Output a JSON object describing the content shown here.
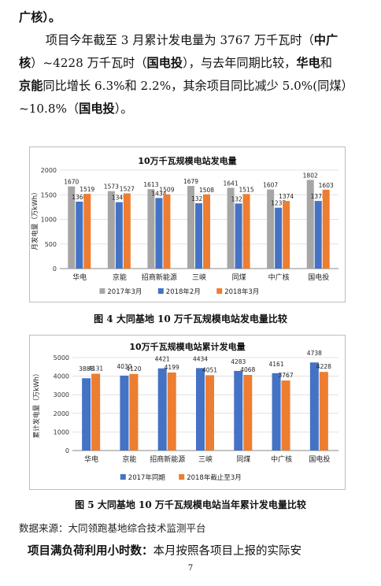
{
  "para": {
    "l1": "广核）。",
    "l2a": "项目今年截至 3 月累计发电量为 3767 万千瓦时（",
    "l2b": "中广",
    "l3a": "核",
    "l3b": "）~4228 万千瓦时（",
    "l3c": "国电投",
    "l3d": "），与去年同期比较，",
    "l3e": "华电",
    "l3f": "和",
    "l4a": "京能",
    "l4b": "同比增长 6.3%和 2.2%，其余项目同比减少 5.0%(同煤）",
    "l5a": "~10.8%（",
    "l5b": "国电投",
    "l5c": "）。"
  },
  "figure4": {
    "caption": "图 4   大同基地 10 万千瓦规模电站发电量比较"
  },
  "figure5": {
    "caption": "图 5   大同基地 10 万千瓦规模电站当年累计发电量比较"
  },
  "source": "数据来源：大同领跑基地综合技术监测平台",
  "last": {
    "bold": "项目满负荷利用小时数：",
    "rest": "本月按照各项目上报的实际安"
  },
  "page_number": "7",
  "chart_data": [
    {
      "type": "bar",
      "title": "10万千瓦规模电站发电量",
      "ylabel": "月发电量（万kWh）",
      "ylim": [
        0,
        2000
      ],
      "yticks": [
        0,
        500,
        1000,
        1500,
        2000
      ],
      "grid": true,
      "legend_position": "bottom",
      "categories": [
        "华电",
        "京能",
        "招商新能源",
        "三峡",
        "同煤",
        "中广核",
        "国电投"
      ],
      "series": [
        {
          "name": "2017年3月",
          "color": "#a6a6a6",
          "values": [
            1670,
            1573,
            1613,
            1679,
            1641,
            1607,
            1802
          ]
        },
        {
          "name": "2018年2月",
          "color": "#4472c4",
          "values": [
            1360,
            1349,
            1434,
            1327,
            1322,
            1237,
            1374
          ]
        },
        {
          "name": "2018年3月",
          "color": "#ed7d31",
          "values": [
            1519,
            1527,
            1509,
            1508,
            1515,
            1374,
            1603
          ]
        }
      ]
    },
    {
      "type": "bar",
      "title": "10万千瓦规模电站累计发电量",
      "ylabel": "累计发电量（万kWh）",
      "ylim": [
        0,
        5000
      ],
      "yticks": [
        0,
        1000,
        2000,
        3000,
        4000,
        5000
      ],
      "grid": true,
      "legend_position": "bottom",
      "categories": [
        "华电",
        "京能",
        "招商新能源",
        "三峡",
        "同煤",
        "中广核",
        "国电投"
      ],
      "series": [
        {
          "name": "2017年同期",
          "color": "#4472c4",
          "values": [
            3888,
            4030,
            4421,
            4434,
            4283,
            4161,
            4738
          ]
        },
        {
          "name": "2018年截止至3月",
          "color": "#ed7d31",
          "values": [
            4131,
            4120,
            4199,
            4051,
            4068,
            3767,
            4228
          ]
        }
      ]
    }
  ]
}
